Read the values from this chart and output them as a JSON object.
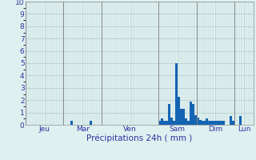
{
  "xlabel": "Précipitations 24h ( mm )",
  "ylim": [
    0,
    10
  ],
  "yticks": [
    0,
    1,
    2,
    3,
    4,
    5,
    6,
    7,
    8,
    9,
    10
  ],
  "background_color": "#dff0f0",
  "plot_bg_color": "#dff0f0",
  "grid_color": "#b8cece",
  "bar_color": "#1464b4",
  "n_bars": 96,
  "bars": [
    0,
    0,
    0,
    0,
    0,
    0,
    0,
    0,
    0,
    0,
    0,
    0,
    0,
    0,
    0,
    0,
    0,
    0,
    0,
    0.3,
    0,
    0,
    0,
    0,
    0,
    0,
    0,
    0.3,
    0,
    0,
    0,
    0,
    0,
    0,
    0,
    0,
    0,
    0,
    0,
    0,
    0,
    0,
    0,
    0,
    0,
    0,
    0,
    0,
    0,
    0,
    0,
    0,
    0,
    0,
    0,
    0,
    0.3,
    0.5,
    0.3,
    0.3,
    1.7,
    0.6,
    0.3,
    5.0,
    2.3,
    1.3,
    1.3,
    0.5,
    0.3,
    1.9,
    1.7,
    0.8,
    0.6,
    0.4,
    0.3,
    0.3,
    0.5,
    0.3,
    0.3,
    0.3,
    0.3,
    0.3,
    0.3,
    0.3,
    0,
    0,
    0.7,
    0.3,
    0,
    0,
    0.7,
    0,
    0,
    0,
    0,
    0
  ],
  "day_labels": [
    "Jeu",
    "Mar",
    "Ven",
    "Sam",
    "Dim",
    "Lun"
  ],
  "day_sep_positions": [
    0,
    16,
    32,
    56,
    72,
    88,
    96
  ],
  "day_label_centers": [
    8,
    24,
    44,
    64,
    80,
    92
  ],
  "vline_color": "#888888",
  "label_fontsize": 6.5,
  "xlabel_fontsize": 7.5,
  "ytick_fontsize": 6.5,
  "tick_color": "#3030a0",
  "ylabel_color": "#3030a0"
}
